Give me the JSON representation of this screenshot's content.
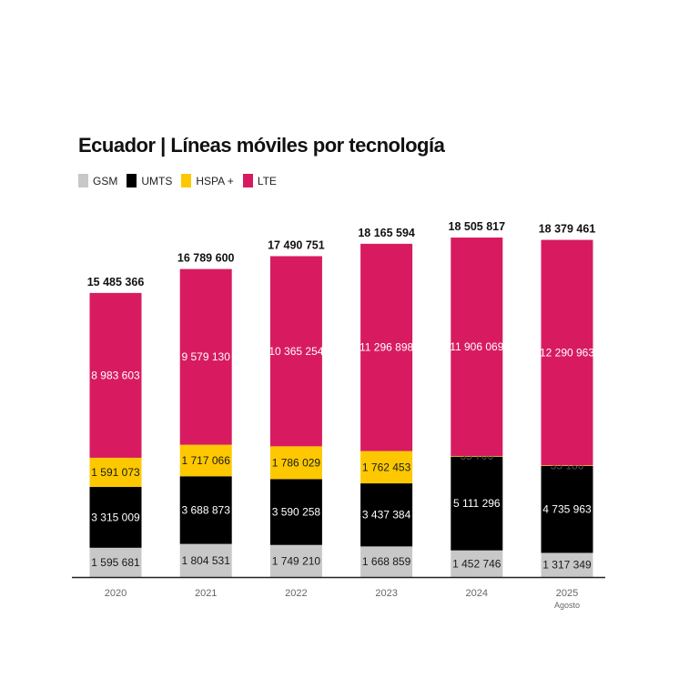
{
  "chart_data": {
    "type": "bar",
    "stacked": true,
    "title": "Ecuador | Líneas móviles por tecnología",
    "categories": [
      "2020",
      "2021",
      "2022",
      "2023",
      "2024",
      "2025"
    ],
    "category_sublabels": [
      "",
      "",
      "",
      "",
      "",
      "Agosto"
    ],
    "series": [
      {
        "name": "GSM",
        "color": "#c8c8c8",
        "values": [
          1595681,
          1804531,
          1749210,
          1668859,
          1452746,
          1317349
        ],
        "labels": [
          "1 595 681",
          "1 804 531",
          "1 749 210",
          "1 668 859",
          "1 452 746",
          "1 317 349"
        ]
      },
      {
        "name": "UMTS",
        "color": "#000000",
        "values": [
          3315009,
          3688873,
          3590258,
          3437384,
          5111296,
          4735963
        ],
        "labels": [
          "3 315 009",
          "3 688 873",
          "3 590 258",
          "3 437 384",
          "5 111 296",
          "4 735 963"
        ]
      },
      {
        "name": "HSPA +",
        "color": "#fdc800",
        "values": [
          1591073,
          1717066,
          1786029,
          1762453,
          35706,
          35186
        ],
        "labels": [
          "1 591 073",
          "1 717 066",
          "1 786 029",
          "1 762 453",
          "35 706",
          "35 186"
        ]
      },
      {
        "name": "LTE",
        "color": "#d81b60",
        "values": [
          8983603,
          9579130,
          10365254,
          11296898,
          11906069,
          12290963
        ],
        "labels": [
          "8 983 603",
          "9 579 130",
          "10 365 254",
          "11 296 898",
          "11 906 069",
          "12 290 963"
        ]
      }
    ],
    "totals": [
      "15 485 366",
      "16 789 600",
      "17 490 751",
      "18 165 594",
      "18 505 817",
      "18 379 461"
    ],
    "legend_position": "top-left",
    "grid": false
  }
}
